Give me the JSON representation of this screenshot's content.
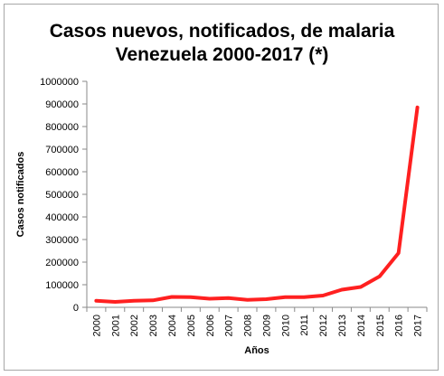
{
  "chart_data": {
    "type": "line",
    "title_line1": "Casos nuevos, notificados, de malaria",
    "title_line2": "Venezuela 2000-2017 (*)",
    "xlabel": "Años",
    "ylabel": "Casos notificados",
    "ylim": [
      0,
      1000000
    ],
    "yticks": [
      0,
      100000,
      200000,
      300000,
      400000,
      500000,
      600000,
      700000,
      800000,
      900000,
      1000000
    ],
    "grid": false,
    "legend": "none",
    "categories": [
      "2000",
      "2001",
      "2002",
      "2003",
      "2004",
      "2005",
      "2006",
      "2007",
      "2008",
      "2009",
      "2010",
      "2011",
      "2012",
      "2013",
      "2014",
      "2015",
      "2016",
      "2017"
    ],
    "series": [
      {
        "values": [
          29000,
          24000,
          29000,
          31000,
          46000,
          45000,
          38000,
          41000,
          33000,
          36000,
          45000,
          45000,
          52000,
          78000,
          90000,
          137000,
          240000,
          885000
        ],
        "color": "#ff2020"
      }
    ]
  }
}
